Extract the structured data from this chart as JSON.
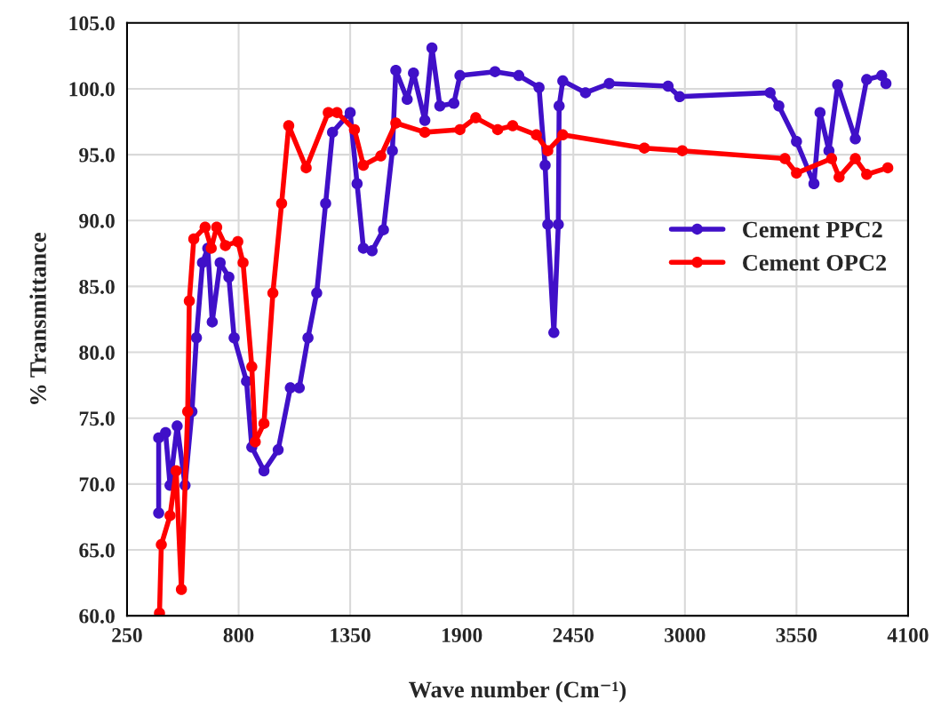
{
  "chart_data": {
    "type": "line",
    "xlabel": "Wave number (Cm⁻¹)",
    "ylabel": "% Transmittance",
    "xlim": [
      250,
      4100
    ],
    "xticks": [
      250,
      800,
      1350,
      1900,
      2450,
      3000,
      3550,
      4100
    ],
    "ylim": [
      60,
      105
    ],
    "yticks": [
      {
        "value": 60,
        "label": "60.0"
      },
      {
        "value": 65,
        "label": "65.0"
      },
      {
        "value": 70,
        "label": "70.0"
      },
      {
        "value": 75,
        "label": "75.0"
      },
      {
        "value": 80,
        "label": "80.0"
      },
      {
        "value": 85,
        "label": "85.0"
      },
      {
        "value": 90,
        "label": "90.0"
      },
      {
        "value": 95,
        "label": "95.0"
      },
      {
        "value": 100,
        "label": "100.0"
      },
      {
        "value": 105,
        "label": "105.0"
      }
    ],
    "grid": true,
    "legend": "right",
    "marker": "circle",
    "line_style": "solid",
    "series": [
      {
        "name": "Cement PPC2",
        "color": "#4010c8",
        "x": [
          406,
          406,
          440,
          462,
          497,
          536,
          570,
          592,
          622,
          648,
          670,
          709,
          752,
          778,
          839,
          865,
          925,
          995,
          1055,
          1099,
          1142,
          1185,
          1229,
          1263,
          1350,
          1384,
          1415,
          1458,
          1514,
          1558,
          1575,
          1631,
          1662,
          1718,
          1753,
          1792,
          1861,
          1891,
          2064,
          2181,
          2281,
          2311,
          2324,
          2354,
          2376,
          2380,
          2398,
          2510,
          2627,
          2917,
          2974,
          3420,
          3463,
          3550,
          3636,
          3666,
          3710,
          3753,
          3840,
          3896,
          3970,
          3991
        ],
        "values": [
          67.8,
          73.5,
          73.9,
          69.9,
          74.4,
          69.9,
          75.5,
          81.1,
          86.8,
          87.9,
          82.3,
          86.8,
          85.7,
          81.1,
          77.8,
          72.8,
          71.0,
          72.6,
          77.3,
          77.3,
          81.1,
          84.5,
          91.3,
          96.7,
          98.2,
          92.8,
          87.9,
          87.7,
          89.3,
          95.3,
          101.4,
          99.2,
          101.2,
          97.6,
          103.1,
          98.7,
          98.9,
          101.0,
          101.3,
          101.0,
          100.1,
          94.2,
          89.7,
          81.5,
          89.7,
          98.7,
          100.6,
          99.7,
          100.4,
          100.2,
          99.4,
          99.7,
          98.7,
          96.0,
          92.8,
          98.2,
          95.3,
          100.3,
          96.2,
          100.7,
          101.0,
          100.4
        ]
      },
      {
        "name": "Cement OPC2",
        "color": "#ff0000",
        "x": [
          410,
          419,
          462,
          492,
          518,
          549,
          557,
          579,
          635,
          665,
          692,
          735,
          796,
          822,
          865,
          882,
          925,
          969,
          1012,
          1047,
          1133,
          1242,
          1285,
          1371,
          1415,
          1501,
          1575,
          1718,
          1891,
          1969,
          2077,
          2151,
          2268,
          2324,
          2398,
          2800,
          2987,
          3493,
          3550,
          3723,
          3760,
          3840,
          3896,
          4000
        ],
        "values": [
          60.2,
          65.4,
          67.6,
          71.0,
          62.0,
          75.5,
          83.9,
          88.6,
          89.5,
          87.9,
          89.5,
          88.1,
          88.4,
          86.8,
          78.9,
          73.2,
          74.6,
          84.5,
          91.3,
          97.2,
          94.0,
          98.2,
          98.2,
          96.9,
          94.2,
          94.9,
          97.4,
          96.7,
          96.9,
          97.8,
          96.9,
          97.2,
          96.5,
          95.3,
          96.5,
          95.5,
          95.3,
          94.7,
          93.6,
          94.7,
          93.3,
          94.7,
          93.5,
          94.0
        ]
      }
    ]
  }
}
